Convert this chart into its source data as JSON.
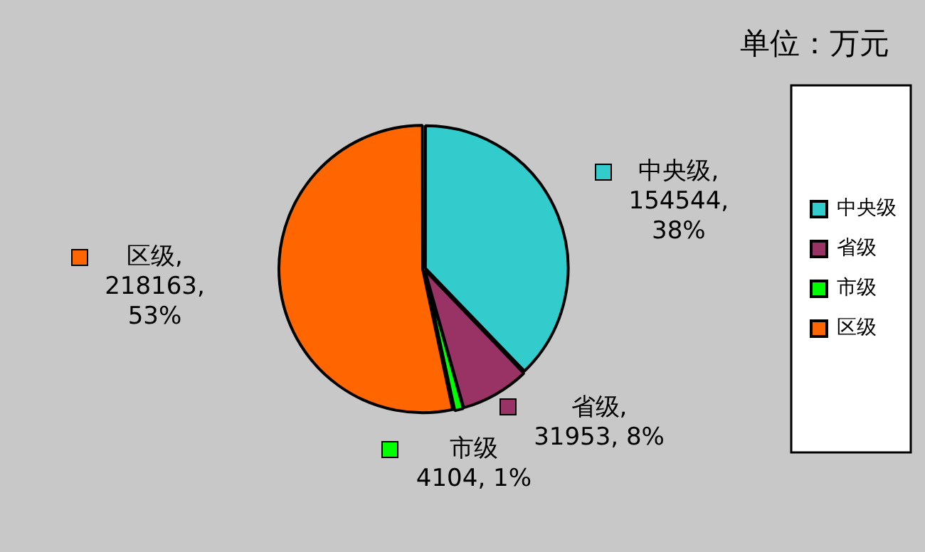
{
  "chart_data": {
    "type": "pie",
    "categories": [
      "中央级",
      "省级",
      "市级",
      "区级"
    ],
    "values": [
      154544,
      31953,
      4104,
      218163
    ],
    "colors": [
      "#33cccc",
      "#993366",
      "#00ff00",
      "#ff6600"
    ],
    "value_labels": [
      "中央级,\n154544,\n38%",
      "省级,\n31953, 8%",
      "市级\n4104, 1%",
      "区级,\n218163,\n53%"
    ],
    "legend": "right",
    "annotations": [
      "单位：万元"
    ]
  }
}
